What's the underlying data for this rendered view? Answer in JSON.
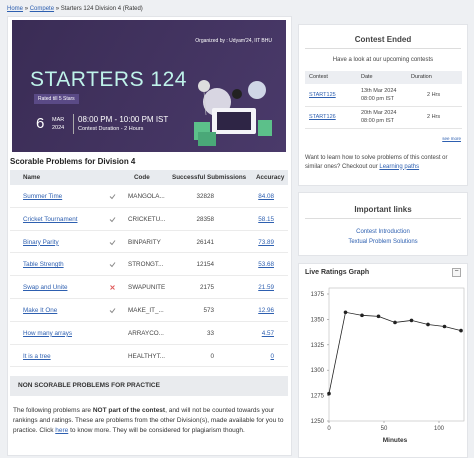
{
  "breadcrumb": {
    "items": [
      "Home",
      "Compete",
      "Starters 124 Division 4 (Rated)"
    ],
    "separator": "»"
  },
  "banner": {
    "organizer": "Organized by : Udyam'24, IIT BHU",
    "title": "STARTERS 124",
    "badge": "Rated till 5 Stars",
    "day": "6",
    "month": "MAR",
    "year": "2024",
    "time": "08:00 PM - 10:00 PM IST",
    "duration": "Contest Duration - 2 Hours"
  },
  "problems": {
    "title": "Scorable Problems for Division 4",
    "headers": [
      "Name",
      "Code",
      "Successful Submissions",
      "Accuracy"
    ],
    "rows": [
      {
        "name": "Summer Time",
        "status": "accepted",
        "code": "MANGOLA...",
        "submissions": 32828,
        "accuracy": 84.08
      },
      {
        "name": "Cricket Tournament",
        "status": "accepted",
        "code": "CRICKETU...",
        "submissions": 28358,
        "accuracy": 58.15
      },
      {
        "name": "Binary Parity",
        "status": "accepted",
        "code": "BINPARITY",
        "submissions": 26141,
        "accuracy": 73.89
      },
      {
        "name": "Table Strength",
        "status": "accepted",
        "code": "STRONGT...",
        "submissions": 12154,
        "accuracy": 53.68
      },
      {
        "name": "Swap and Unite",
        "status": "wrong",
        "code": "SWAPUNITE",
        "submissions": 2175,
        "accuracy": 21.59
      },
      {
        "name": "Make It One",
        "status": "accepted",
        "code": "MAKE_IT_...",
        "submissions": 573,
        "accuracy": 12.96
      },
      {
        "name": "How many arrays",
        "status": null,
        "code": "ARRAYCO...",
        "submissions": 33,
        "accuracy": 4.57
      },
      {
        "name": "It is a tree",
        "status": null,
        "code": "HEALTHYT...",
        "submissions": 0,
        "accuracy": 0
      }
    ]
  },
  "non_scorable": {
    "title": "NON SCORABLE PROBLEMS FOR PRACTICE",
    "text_1": "The following problems are ",
    "bold": "NOT part of the contest",
    "text_2": ", and will not be counted towards your rankings and ratings. These are problems from the other Division(s), made available for you to practice. Click ",
    "link": "here",
    "text_3": " to know more. They will be considered for plagiarism though."
  },
  "contest_ended": {
    "title": "Contest Ended",
    "subtitle": "Have a look at our upcoming contests",
    "headers": [
      "Contest",
      "Date",
      "Duration"
    ],
    "rows": [
      {
        "contest": "START125",
        "date": "13th Mar 2024",
        "time": "08:00 pm IST",
        "duration": "2 Hrs"
      },
      {
        "contest": "START126",
        "date": "20th Mar 2024",
        "time": "08:00 pm IST",
        "duration": "2 Hrs"
      }
    ],
    "see_more": "see more",
    "learn_text": "Want to learn how to solve problems of this contest or similar ones? Checkout our ",
    "learn_link": "Learning paths"
  },
  "important_links": {
    "title": "Important links",
    "links": [
      "Contest Introduction",
      "Textual Problem Solutions"
    ]
  },
  "chart_data": {
    "type": "line",
    "title": "Live Ratings Graph",
    "x_label": "Minutes",
    "x": [
      0,
      15,
      30,
      45,
      60,
      75,
      90,
      105,
      120
    ],
    "series": [
      {
        "color": "#222222",
        "values": [
          1277,
          1357,
          1354,
          1353,
          1347,
          1349,
          1345,
          1343,
          1339
        ]
      }
    ],
    "xlim": [
      0,
      120
    ],
    "xticks": [
      0,
      50,
      100
    ],
    "ylim": [
      1250,
      1375
    ],
    "yticks": [
      1250,
      1275,
      1300,
      1325,
      1350,
      1375
    ],
    "grid": false
  }
}
